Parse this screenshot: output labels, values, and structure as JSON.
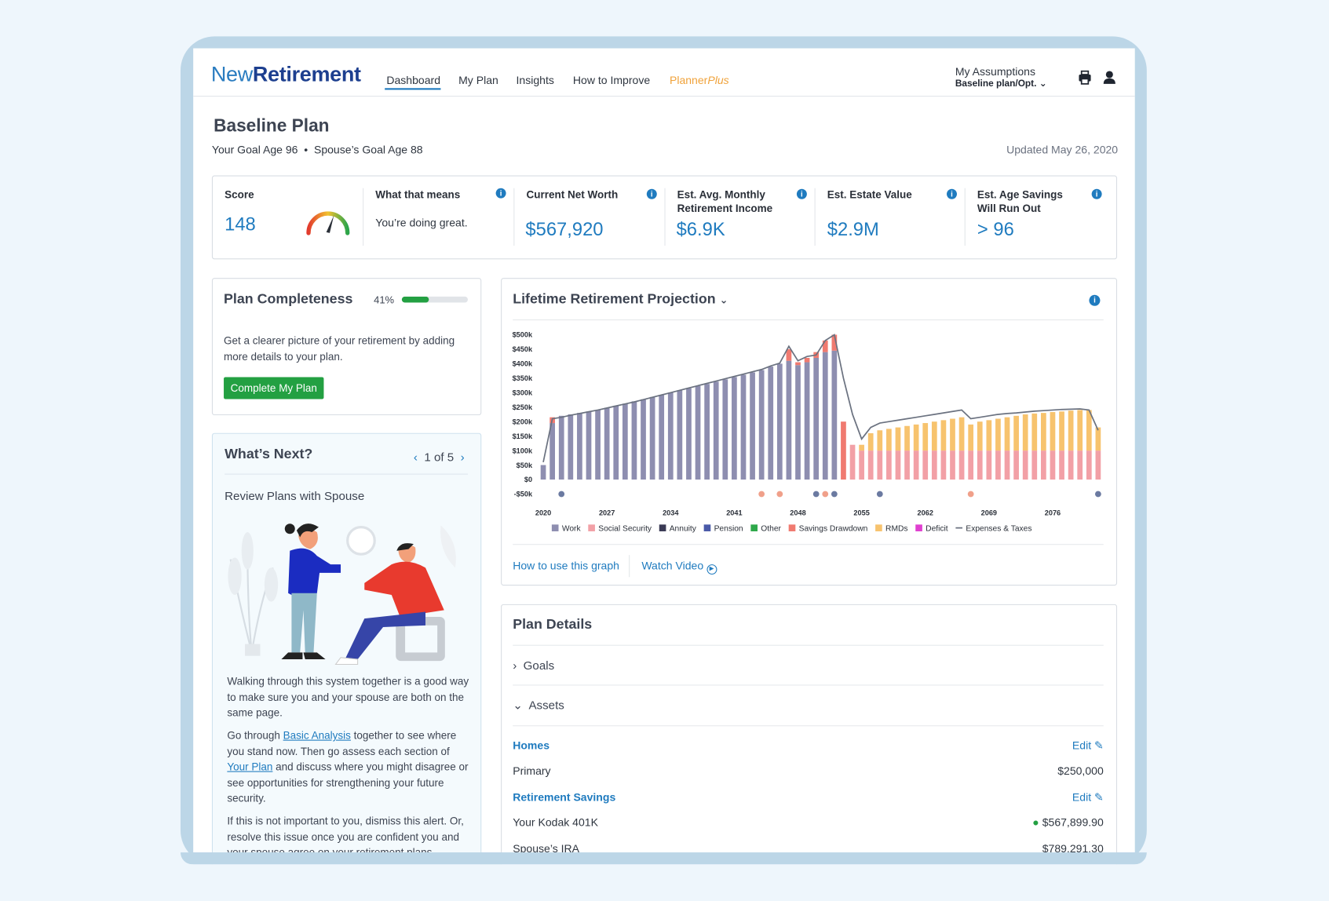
{
  "header": {
    "logo_new": "New",
    "logo_retirement": "Retirement",
    "nav": [
      "Dashboard",
      "My Plan",
      "Insights",
      "How to Improve"
    ],
    "planner_plus": [
      "Planner",
      "Plus"
    ],
    "assumptions_label": "My Assumptions",
    "assumptions_value": "Baseline plan/Opt."
  },
  "plan": {
    "title": "Baseline Plan",
    "goal": "Your Goal Age 96",
    "spouse_goal": "Spouse’s Goal Age 88",
    "updated": "Updated May 26, 2020"
  },
  "metrics": [
    {
      "label": "Score",
      "value": "148"
    },
    {
      "label": "What that means",
      "value": "You’re doing great."
    },
    {
      "label": "Current Net Worth",
      "value": "$567,920"
    },
    {
      "label": "Est. Avg. Monthly Retirement Income",
      "value": "$6.9K"
    },
    {
      "label": "Est. Estate Value",
      "value": "$2.9M"
    },
    {
      "label": "Est. Age Savings Will Run Out",
      "value": "> 96"
    }
  ],
  "completeness": {
    "title": "Plan Completeness",
    "progress": {
      "value": 41,
      "label": "41%"
    },
    "text": "Get a clearer picture of your retirement by adding more details to your plan.",
    "button": "Complete My Plan"
  },
  "whats_next": {
    "title": "What’s Next?",
    "pager": "1 of 5",
    "subtitle": "Review Plans with Spouse",
    "p1": "Walking through this system together is a good way to make sure you and your spouse are both on the same page.",
    "p2": [
      "Go through ",
      "Basic Analysis",
      " together to see where you stand now. Then go assess each section of ",
      "Your Plan",
      " and discuss where you might disagree or see opportunities for strengthening your future security."
    ],
    "p3": "If this is not important to you, dismiss this alert. Or, resolve this issue once you are confident you and your spouse agree on your retirement plans."
  },
  "chart_panel": {
    "title": "Lifetime Retirement Projection",
    "links": [
      "How to use this graph",
      "Watch Video"
    ]
  },
  "chart_data": {
    "type": "bar",
    "stacked": true,
    "grid": false,
    "x": [
      2020,
      2021,
      2022,
      2023,
      2024,
      2025,
      2026,
      2027,
      2028,
      2029,
      2030,
      2031,
      2032,
      2033,
      2034,
      2035,
      2036,
      2037,
      2038,
      2039,
      2040,
      2041,
      2042,
      2043,
      2044,
      2045,
      2046,
      2047,
      2048,
      2049,
      2050,
      2051,
      2052,
      2053,
      2054,
      2055,
      2056,
      2057,
      2058,
      2059,
      2060,
      2061,
      2062,
      2063,
      2064,
      2065,
      2066,
      2067,
      2068,
      2069,
      2070,
      2071,
      2072,
      2073,
      2074,
      2075,
      2076,
      2077,
      2078,
      2079,
      2080,
      2081
    ],
    "xlim": [
      2019.5,
      2081.5
    ],
    "xticks": [
      2020,
      2027,
      2034,
      2041,
      2048,
      2055,
      2062,
      2069,
      2076
    ],
    "ylim": [
      -50000,
      500000
    ],
    "yticks": [
      {
        "value": -50000,
        "label": "-$50k"
      },
      {
        "value": 0,
        "label": "$0"
      },
      {
        "value": 50000,
        "label": "$50k"
      },
      {
        "value": 100000,
        "label": "$100k"
      },
      {
        "value": 150000,
        "label": "$150k"
      },
      {
        "value": 200000,
        "label": "$200k"
      },
      {
        "value": 250000,
        "label": "$250k"
      },
      {
        "value": 300000,
        "label": "$300k"
      },
      {
        "value": 350000,
        "label": "$350k"
      },
      {
        "value": 400000,
        "label": "$400k"
      },
      {
        "value": 450000,
        "label": "$450k"
      },
      {
        "value": 500000,
        "label": "$500k"
      }
    ],
    "series": [
      {
        "name": "Work",
        "color": "#8e8eb0",
        "values": [
          50000,
          195000,
          220000,
          225000,
          230000,
          235000,
          240000,
          248000,
          255000,
          262000,
          270000,
          277000,
          285000,
          292000,
          300000,
          308000,
          315000,
          323000,
          330000,
          338000,
          346000,
          354000,
          362000,
          370000,
          378000,
          390000,
          400000,
          410000,
          395000,
          405000,
          420000,
          440000,
          445000,
          0,
          0,
          0,
          0,
          0,
          0,
          0,
          0,
          0,
          0,
          0,
          0,
          0,
          0,
          0,
          0,
          0,
          0,
          0,
          0,
          0,
          0,
          0,
          0,
          0,
          0,
          0,
          0,
          0
        ]
      },
      {
        "name": "Social Security",
        "color": "#f2a0a6",
        "values": [
          0,
          0,
          0,
          0,
          0,
          0,
          0,
          0,
          0,
          0,
          0,
          0,
          0,
          0,
          0,
          0,
          0,
          0,
          0,
          0,
          0,
          0,
          0,
          0,
          0,
          0,
          0,
          0,
          0,
          0,
          0,
          0,
          0,
          0,
          120000,
          100000,
          100000,
          100000,
          100000,
          100000,
          100000,
          100000,
          100000,
          100000,
          100000,
          100000,
          100000,
          100000,
          100000,
          100000,
          100000,
          100000,
          100000,
          100000,
          100000,
          100000,
          100000,
          100000,
          100000,
          100000,
          100000,
          100000
        ]
      },
      {
        "name": "Annuity",
        "color": "#3a3a55",
        "values": [
          0,
          0,
          0,
          0,
          0,
          0,
          0,
          0,
          0,
          0,
          0,
          0,
          0,
          0,
          0,
          0,
          0,
          0,
          0,
          0,
          0,
          0,
          0,
          0,
          0,
          0,
          0,
          0,
          0,
          0,
          0,
          0,
          0,
          0,
          0,
          0,
          0,
          0,
          0,
          0,
          0,
          0,
          0,
          0,
          0,
          0,
          0,
          0,
          0,
          0,
          0,
          0,
          0,
          0,
          0,
          0,
          0,
          0,
          0,
          0,
          0,
          0
        ]
      },
      {
        "name": "Pension",
        "color": "#4a5aa8",
        "values": [
          0,
          0,
          0,
          0,
          0,
          0,
          0,
          0,
          0,
          0,
          0,
          0,
          0,
          0,
          0,
          0,
          0,
          0,
          0,
          0,
          0,
          0,
          0,
          0,
          0,
          0,
          0,
          0,
          0,
          0,
          0,
          0,
          0,
          0,
          0,
          0,
          0,
          0,
          0,
          0,
          0,
          0,
          0,
          0,
          0,
          0,
          0,
          0,
          0,
          0,
          0,
          0,
          0,
          0,
          0,
          0,
          0,
          0,
          0,
          0,
          0,
          0
        ]
      },
      {
        "name": "Other",
        "color": "#2ea84a",
        "values": [
          0,
          0,
          0,
          0,
          0,
          0,
          0,
          0,
          0,
          0,
          0,
          0,
          0,
          0,
          0,
          0,
          0,
          0,
          0,
          0,
          0,
          0,
          0,
          0,
          0,
          0,
          0,
          0,
          0,
          0,
          0,
          0,
          0,
          0,
          0,
          0,
          0,
          0,
          0,
          0,
          0,
          0,
          0,
          0,
          0,
          0,
          0,
          0,
          0,
          0,
          0,
          0,
          0,
          0,
          0,
          0,
          0,
          0,
          0,
          0,
          0,
          0
        ]
      },
      {
        "name": "Savings Drawdown",
        "color": "#f07a70",
        "values": [
          0,
          20000,
          0,
          0,
          0,
          0,
          0,
          0,
          0,
          0,
          0,
          0,
          0,
          0,
          0,
          0,
          0,
          0,
          0,
          0,
          0,
          0,
          0,
          0,
          0,
          0,
          0,
          40000,
          10000,
          15000,
          20000,
          40000,
          55000,
          200000,
          0,
          0,
          0,
          0,
          0,
          0,
          0,
          0,
          0,
          0,
          0,
          0,
          0,
          0,
          0,
          0,
          0,
          0,
          0,
          0,
          0,
          0,
          0,
          0,
          0,
          0,
          0,
          0
        ]
      },
      {
        "name": "RMDs",
        "color": "#f7c36e",
        "values": [
          0,
          0,
          0,
          0,
          0,
          0,
          0,
          0,
          0,
          0,
          0,
          0,
          0,
          0,
          0,
          0,
          0,
          0,
          0,
          0,
          0,
          0,
          0,
          0,
          0,
          0,
          0,
          0,
          0,
          0,
          0,
          0,
          0,
          0,
          0,
          20000,
          60000,
          70000,
          75000,
          80000,
          85000,
          90000,
          95000,
          100000,
          105000,
          110000,
          115000,
          90000,
          100000,
          105000,
          110000,
          115000,
          120000,
          125000,
          128000,
          130000,
          133000,
          135000,
          138000,
          140000,
          140000,
          80000
        ]
      },
      {
        "name": "Deficit",
        "color": "#e040d0",
        "values": [
          0,
          0,
          0,
          0,
          0,
          0,
          0,
          0,
          0,
          0,
          0,
          0,
          0,
          0,
          0,
          0,
          0,
          0,
          0,
          0,
          0,
          0,
          0,
          0,
          0,
          0,
          0,
          0,
          0,
          0,
          0,
          0,
          0,
          0,
          0,
          0,
          0,
          0,
          0,
          0,
          0,
          0,
          0,
          0,
          0,
          0,
          0,
          0,
          0,
          0,
          0,
          0,
          0,
          0,
          0,
          0,
          0,
          0,
          0,
          0,
          0,
          0
        ]
      },
      {
        "name": "Expenses & Taxes",
        "color": "#6b7280",
        "type": "line",
        "values": [
          60000,
          210000,
          215000,
          222000,
          228000,
          234000,
          240000,
          247000,
          254000,
          261000,
          268000,
          276000,
          284000,
          292000,
          300000,
          308000,
          316000,
          324000,
          332000,
          340000,
          348000,
          356000,
          364000,
          372000,
          380000,
          392000,
          402000,
          460000,
          410000,
          425000,
          430000,
          480000,
          500000,
          350000,
          225000,
          140000,
          180000,
          195000,
          200000,
          205000,
          210000,
          215000,
          220000,
          225000,
          230000,
          235000,
          240000,
          210000,
          215000,
          220000,
          225000,
          228000,
          230000,
          233000,
          236000,
          238000,
          240000,
          242000,
          243000,
          244000,
          240000,
          170000
        ]
      }
    ],
    "events": {
      "x": [
        2022,
        2044,
        2046,
        2050,
        2051,
        2052,
        2057,
        2067,
        2081
      ],
      "colors": [
        "#6b7aa1",
        "#f0a08a",
        "#f0a08a",
        "#6b7aa1",
        "#f0a08a",
        "#6b7aa1",
        "#6b7aa1",
        "#f0a08a",
        "#6b7aa1"
      ]
    }
  },
  "plan_details": {
    "title": "Plan Details",
    "sections": [
      "Goals",
      "Assets"
    ],
    "groups": [
      {
        "name": "Homes",
        "edit": "Edit",
        "items": [
          [
            "Primary",
            "$250,000"
          ]
        ]
      },
      {
        "name": "Retirement Savings",
        "edit": "Edit",
        "items": [
          [
            "Your Kodak 401K",
            "$567,899.90"
          ],
          [
            "Spouse’s IRA",
            "$789,291.30"
          ]
        ]
      }
    ]
  }
}
